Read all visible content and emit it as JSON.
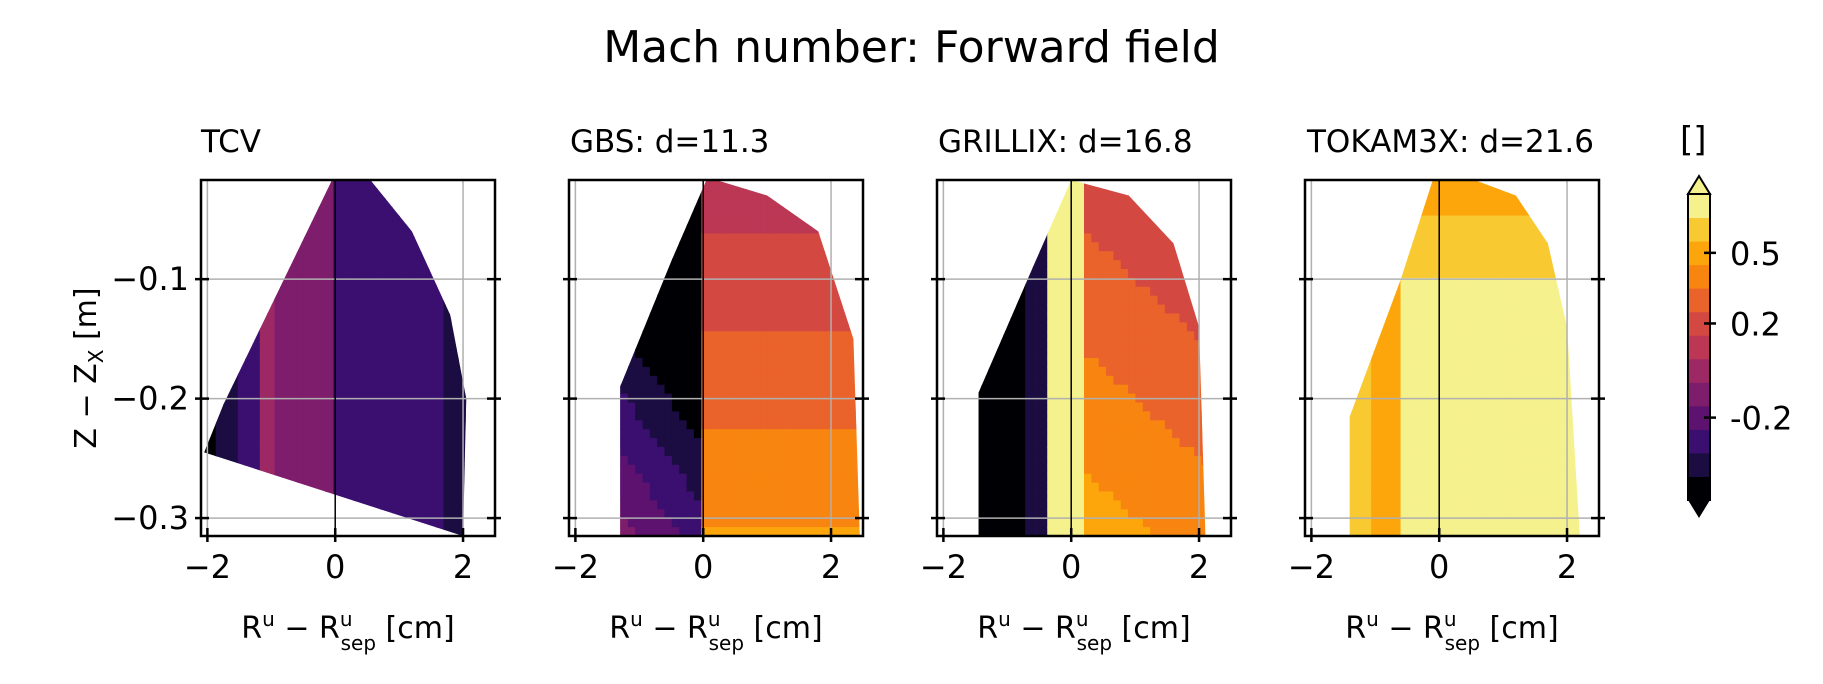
{
  "chart_data": {
    "type": "contour",
    "title": "Mach number: Forward field",
    "ylabel": "Z − Z_X [m]",
    "xlabel": "R^u − R^u_sep [cm]",
    "xlim": [
      -2.1,
      2.5
    ],
    "ylim": [
      -0.315,
      -0.017
    ],
    "xticks": [
      "−2",
      "0",
      "2"
    ],
    "yticks": [
      "−0.1",
      "−0.2",
      "−0.3"
    ],
    "ytick_values": [
      -0.1,
      -0.2,
      -0.3
    ],
    "xtick_values": [
      -2,
      0,
      2
    ],
    "grid": true,
    "colormap": "inferno",
    "colorbar": {
      "label": "[]",
      "ticks": [
        "0.5",
        "0.2",
        "-0.2"
      ],
      "tick_values": [
        0.5,
        0.2,
        -0.2
      ],
      "levels": [
        -0.5,
        -0.4,
        -0.3,
        -0.2,
        -0.1,
        0.0,
        0.1,
        0.2,
        0.3,
        0.4,
        0.5,
        0.6,
        0.7
      ],
      "colors": [
        "#000004",
        "#1b0c41",
        "#3b0f70",
        "#5c126e",
        "#7e1d6c",
        "#9c2964",
        "#bb3754",
        "#d44842",
        "#ea632b",
        "#f8850f",
        "#fca60c",
        "#f9c932",
        "#f5f18c"
      ],
      "extend": "both"
    },
    "panels": [
      {
        "name": "TCV"
      },
      {
        "name": "GBS: d=11.3"
      },
      {
        "name": "GRILLIX: d=16.8"
      },
      {
        "name": "TOKAM3X: d=21.6"
      }
    ]
  }
}
